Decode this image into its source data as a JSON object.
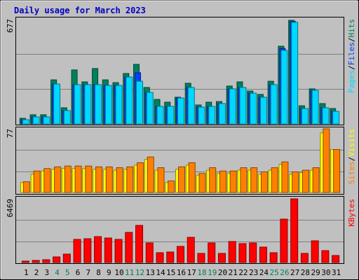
{
  "chart_data": {
    "type": "bar",
    "title": "Daily usage for March 2023",
    "categories": [
      "1",
      "2",
      "3",
      "4",
      "5",
      "6",
      "7",
      "8",
      "9",
      "10",
      "11",
      "12",
      "13",
      "14",
      "15",
      "16",
      "17",
      "18",
      "19",
      "20",
      "21",
      "22",
      "23",
      "24",
      "25",
      "26",
      "27",
      "28",
      "29",
      "30",
      "31"
    ],
    "category_colors": [
      "#000000",
      "#000000",
      "#000000",
      "#00805c",
      "#00805c",
      "#000000",
      "#000000",
      "#000000",
      "#000000",
      "#000000",
      "#00805c",
      "#00805c",
      "#000000",
      "#000000",
      "#000000",
      "#000000",
      "#000000",
      "#00805c",
      "#00805c",
      "#000000",
      "#000000",
      "#000000",
      "#000000",
      "#000000",
      "#00805c",
      "#00805c",
      "#000000",
      "#000000",
      "#000000",
      "#000000",
      "#000000"
    ],
    "legend_separator": "/",
    "grid_divisions": 3,
    "panels": [
      {
        "ylim": [
          0,
          677
        ],
        "yticks": [
          677
        ],
        "series": [
          {
            "name": "Hits",
            "color": "#00805c",
            "values": [
              36,
              59,
              59,
              284,
              104,
              348,
              271,
              357,
              284,
              266,
              325,
              384,
              235,
              158,
              140,
              172,
              262,
              122,
              140,
              144,
              244,
              271,
              212,
              190,
              275,
              501,
              668,
              117,
              226,
              131,
              99
            ]
          },
          {
            "name": "Files",
            "color": "#0040ff",
            "values": [
              27,
              45,
              45,
              257,
              86,
              253,
              253,
              253,
              248,
              248,
              302,
              330,
              203,
              113,
              113,
              167,
              235,
              108,
              113,
              131,
              226,
              235,
              198,
              172,
              253,
              486,
              660,
              99,
              217,
              104,
              81
            ]
          },
          {
            "name": "Pages",
            "color": "#00d8ff",
            "values": [
              27,
              45,
              45,
              257,
              86,
              253,
              253,
              253,
              248,
              248,
              302,
              275,
              203,
              113,
              113,
              167,
              235,
              108,
              113,
              131,
              226,
              235,
              198,
              172,
              253,
              474,
              655,
              99,
              217,
              104,
              81
            ]
          }
        ]
      },
      {
        "ylim": [
          0,
          77
        ],
        "yticks": [
          77
        ],
        "series": [
          {
            "name": "Visits",
            "color": "#ffff00",
            "values": [
              12,
              22,
              26,
              28,
              29,
              29,
              29,
              28,
              28,
              27,
              28,
              33,
              40,
              27,
              12,
              28,
              33,
              21,
              27,
              23,
              23,
              27,
              27,
              22,
              27,
              34,
              22,
              24,
              27,
              72,
              52
            ]
          },
          {
            "name": "Sites",
            "color": "#ff8000",
            "values": [
              13,
              26,
              29,
              31,
              32,
              32,
              32,
              31,
              31,
              30,
              31,
              36,
              43,
              30,
              14,
              31,
              36,
              23,
              30,
              26,
              26,
              30,
              30,
              25,
              30,
              37,
              25,
              27,
              30,
              77,
              52
            ]
          }
        ]
      },
      {
        "ylim": [
          0,
          6469
        ],
        "yticks": [
          6469
        ],
        "series": [
          {
            "name": "KBytes",
            "color": "#ff0000",
            "values": [
              142,
              213,
              284,
              569,
              853,
              2346,
              2417,
              2630,
              2488,
              2346,
              3057,
              3768,
              1991,
              995,
              1066,
              1635,
              2559,
              924,
              1991,
              924,
              2133,
              1920,
              1991,
              1564,
              995,
              4408,
              6469,
              924,
              2204,
              1208,
              711
            ]
          }
        ]
      }
    ]
  }
}
